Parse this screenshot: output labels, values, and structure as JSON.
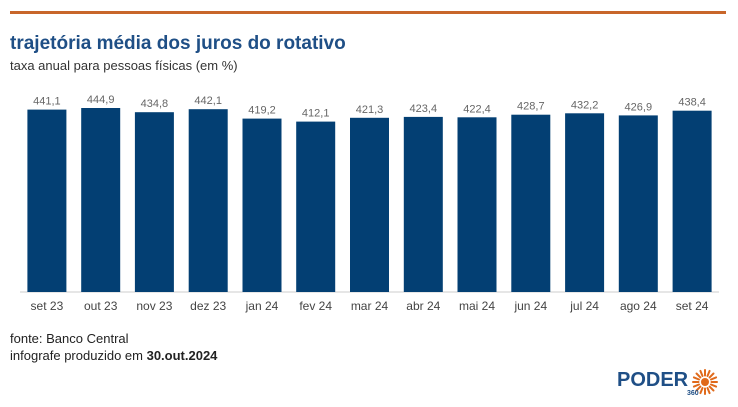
{
  "header": {
    "title": "trajetória média dos juros do rotativo",
    "subtitle": "taxa anual para pessoas físicas (em %)"
  },
  "footer": {
    "source": "fonte: Banco Central",
    "credit_prefix": "infografe produzido em ",
    "credit_date": "30.out.2024"
  },
  "logo": {
    "name": "PODER",
    "suffix": "360",
    "icon": "sun-burst-icon"
  },
  "colors": {
    "bar": "#033f73",
    "accent": "#c8662a",
    "title": "#1f4f86"
  },
  "chart_data": {
    "type": "bar",
    "title": "trajetória média dos juros do rotativo",
    "subtitle": "taxa anual para pessoas físicas (em %)",
    "xlabel": "",
    "ylabel": "",
    "categories": [
      "set 23",
      "out 23",
      "nov 23",
      "dez 23",
      "jan 24",
      "fev 24",
      "mar 24",
      "abr 24",
      "mai 24",
      "jun 24",
      "jul 24",
      "ago 24",
      "set 24"
    ],
    "values": [
      441.1,
      444.9,
      434.8,
      442.1,
      419.2,
      412.1,
      421.3,
      423.4,
      422.4,
      428.7,
      432.2,
      426.9,
      438.4
    ],
    "value_labels": [
      "441,1",
      "444,9",
      "434,8",
      "442,1",
      "419,2",
      "412,1",
      "421,3",
      "423,4",
      "422,4",
      "428,7",
      "432,2",
      "426,9",
      "438,4"
    ],
    "ylim": [
      0,
      444.9
    ],
    "grid": false,
    "legend": "none"
  }
}
